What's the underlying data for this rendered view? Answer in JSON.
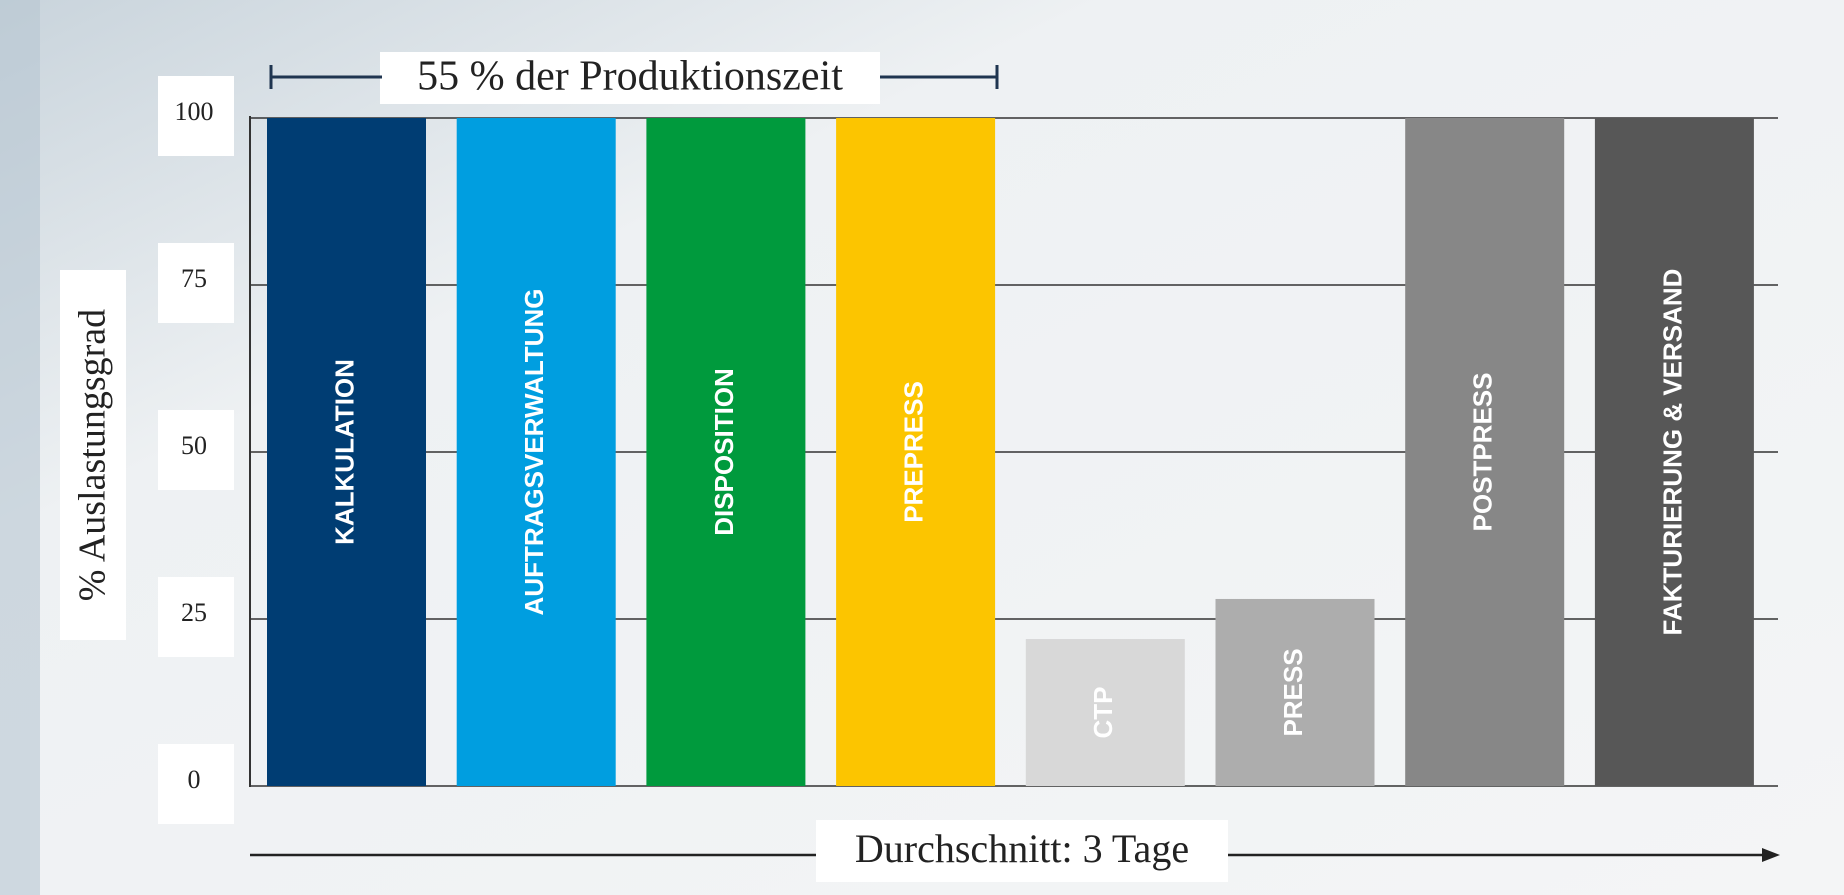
{
  "chart_data": {
    "type": "bar",
    "annotation": "55 % der Produktionszeit",
    "y_label": "% Auslastungsgrad",
    "x_label": "Durchschnitt: 3 Tage",
    "categories": [
      "KALKULATION",
      "AUFTRAGSVERWALTUNG",
      "DISPOSITION",
      "PREPRESS",
      "CTP",
      "PRESS",
      "POSTPRESS",
      "FAKTURIERUNG & VERSAND"
    ],
    "values": [
      100,
      100,
      100,
      100,
      22,
      28,
      100,
      100
    ],
    "colors": [
      "#003d73",
      "#009ee0",
      "#009a3d",
      "#fcc500",
      "#d8d8d8",
      "#adadad",
      "#878787",
      "#575757"
    ],
    "ylim": [
      0,
      100
    ],
    "yticks": [
      0,
      25,
      50,
      75,
      100
    ],
    "grid": true
  }
}
